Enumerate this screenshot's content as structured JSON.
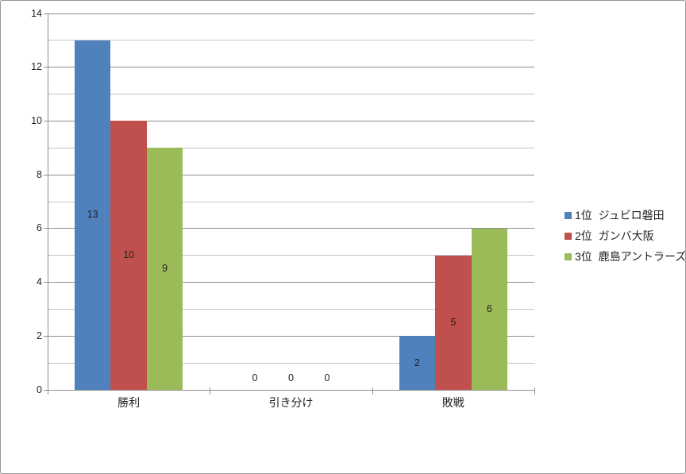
{
  "chart_data": {
    "type": "bar",
    "categories": [
      "勝利",
      "引き分け",
      "敗戦"
    ],
    "series": [
      {
        "name": "1位  ジュビロ磐田",
        "color": "#4F81BD",
        "values": [
          13,
          0,
          2
        ]
      },
      {
        "name": "2位  ガンバ大阪",
        "color": "#C0504D",
        "values": [
          10,
          0,
          5
        ]
      },
      {
        "name": "3位  鹿島アントラーズ",
        "color": "#9BBB59",
        "values": [
          9,
          0,
          6
        ]
      }
    ],
    "ylim": [
      0,
      14
    ],
    "y_major_step": 2,
    "y_minor_step": 1,
    "y_tick_labels": [
      "0",
      "2",
      "4",
      "6",
      "8",
      "10",
      "12",
      "14"
    ],
    "grid": true,
    "data_labels": true,
    "legend_position": "right",
    "styles": {
      "background": "#FFFFFF",
      "frame_border_color": "#979797",
      "axis_color": "#8E8E8E",
      "major_gridline_color": "#8E8E8E",
      "minor_gridline_color": "#C3C3C3",
      "text_color": "#1F1F1F"
    }
  }
}
